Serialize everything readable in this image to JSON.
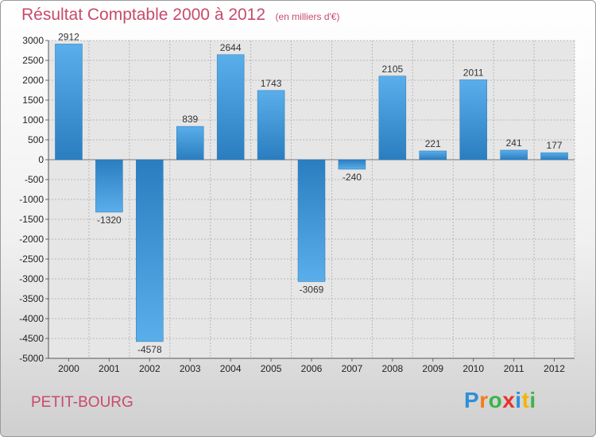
{
  "chart_data": {
    "type": "bar",
    "title": "Résultat Comptable 2000 à 2012",
    "subtitle": "(en milliers d'€)",
    "categories": [
      "2000",
      "2001",
      "2002",
      "2003",
      "2004",
      "2005",
      "2006",
      "2007",
      "2008",
      "2009",
      "2010",
      "2011",
      "2012"
    ],
    "values": [
      2912,
      -1320,
      -4578,
      839,
      2644,
      1743,
      -3069,
      -240,
      2105,
      221,
      2011,
      241,
      177
    ],
    "ylim": [
      -5000,
      3000
    ],
    "ytick_step": 500,
    "xlabel": "",
    "ylabel": "",
    "grid": true
  },
  "place_name": "PETIT-BOURG",
  "logo": {
    "text": "Proxiti",
    "letters": [
      {
        "ch": "P",
        "color": "#2e8fd6"
      },
      {
        "ch": "r",
        "color": "#f07d1a"
      },
      {
        "ch": "o",
        "color": "#3cb44a"
      },
      {
        "ch": "x",
        "color": "#e6332a"
      },
      {
        "ch": "i",
        "color": "#2e8fd6"
      },
      {
        "ch": "t",
        "color": "#f4b400"
      },
      {
        "ch": "i",
        "color": "#3cb44a"
      }
    ]
  },
  "colors": {
    "bar_light": "#5aaeea",
    "bar_dark": "#2a7ec0",
    "title": "#c84a6c",
    "grid": "#b8b8b8",
    "plot_bg": "#e6e6e6"
  }
}
